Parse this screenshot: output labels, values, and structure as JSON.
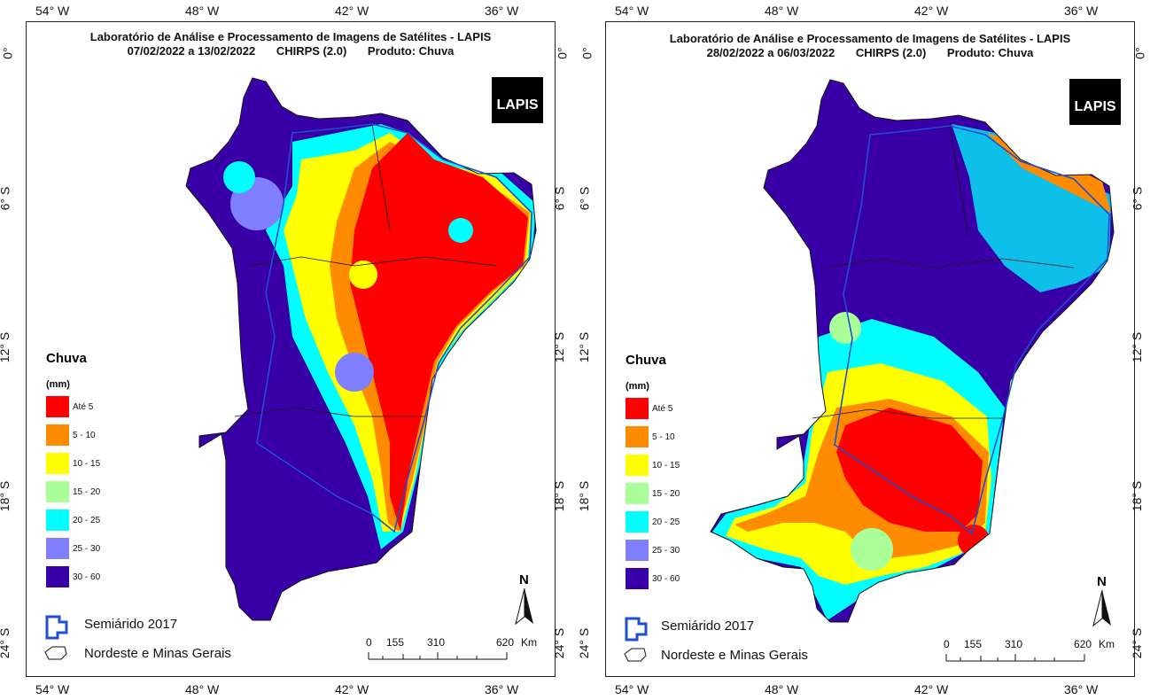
{
  "maps": [
    {
      "title_line1": "Laboratório de Análise e Processamento de Imagens de Satélites - LAPIS",
      "date_range": "07/02/2022  a  13/02/2022",
      "dataset": "CHIRPS (2.0)",
      "product": "Produto: Chuva"
    },
    {
      "title_line1": "Laboratório de Análise e Processamento de Imagens de Satélites - LAPIS",
      "date_range": "28/02/2022  a  06/03/2022",
      "dataset": "CHIRPS (2.0)",
      "product": "Produto: Chuva"
    }
  ],
  "axes": {
    "lon_ticks": [
      "54° W",
      "48° W",
      "42° W",
      "36° W"
    ],
    "lat_ticks": [
      "0°",
      "6° S",
      "12° S",
      "18° S",
      "24° S"
    ]
  },
  "legend": {
    "title": "Chuva",
    "unit": "(mm)",
    "classes": [
      {
        "label": "Até 5",
        "color": "#ff0000"
      },
      {
        "label": "5 - 10",
        "color": "#ff8c00"
      },
      {
        "label": "10 - 15",
        "color": "#ffff00"
      },
      {
        "label": "15 - 20",
        "color": "#aaff99"
      },
      {
        "label": "20 - 25",
        "color": "#00ffff"
      },
      {
        "label": "25 - 30",
        "color": "#7f7fff"
      },
      {
        "label": "30 - 60",
        "color": "#3a00a8"
      }
    ],
    "semiarido": "Semiárido 2017",
    "region": "Nordeste e Minas Gerais"
  },
  "scalebar": {
    "labels": [
      "0",
      "155",
      "310",
      "620"
    ],
    "unit": "Km"
  },
  "logo_text": "LAPIS",
  "north_label": "N"
}
